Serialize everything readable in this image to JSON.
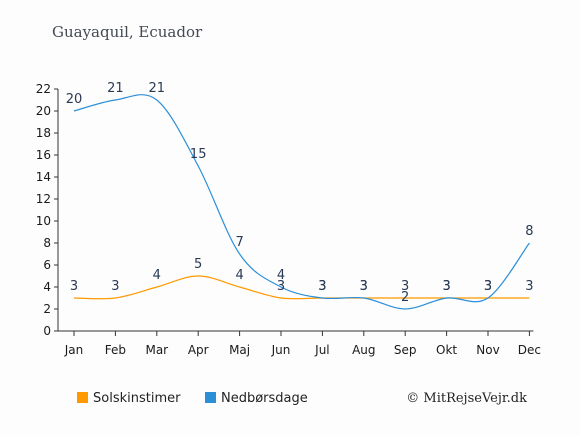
{
  "chart_data": {
    "type": "line",
    "title": "Guayaquil, Ecuador",
    "categories": [
      "Jan",
      "Feb",
      "Mar",
      "Apr",
      "Maj",
      "Jun",
      "Jul",
      "Aug",
      "Sep",
      "Okt",
      "Nov",
      "Dec"
    ],
    "ylim": [
      0,
      22
    ],
    "yticks": [
      0,
      2,
      4,
      6,
      8,
      10,
      12,
      14,
      16,
      18,
      20,
      22
    ],
    "grid": false,
    "legend_position": "bottom",
    "series": [
      {
        "name": "Solskinstimer",
        "color": "#ff9900",
        "values": [
          3,
          3,
          4,
          5,
          4,
          3,
          3,
          3,
          3,
          3,
          3,
          3
        ]
      },
      {
        "name": "Nedbørsdage",
        "color": "#2b8fd8",
        "values": [
          20,
          21,
          21,
          15,
          7,
          4,
          3,
          3,
          2,
          3,
          3,
          8
        ]
      }
    ]
  },
  "credit": "© MitRejseVejr.dk"
}
